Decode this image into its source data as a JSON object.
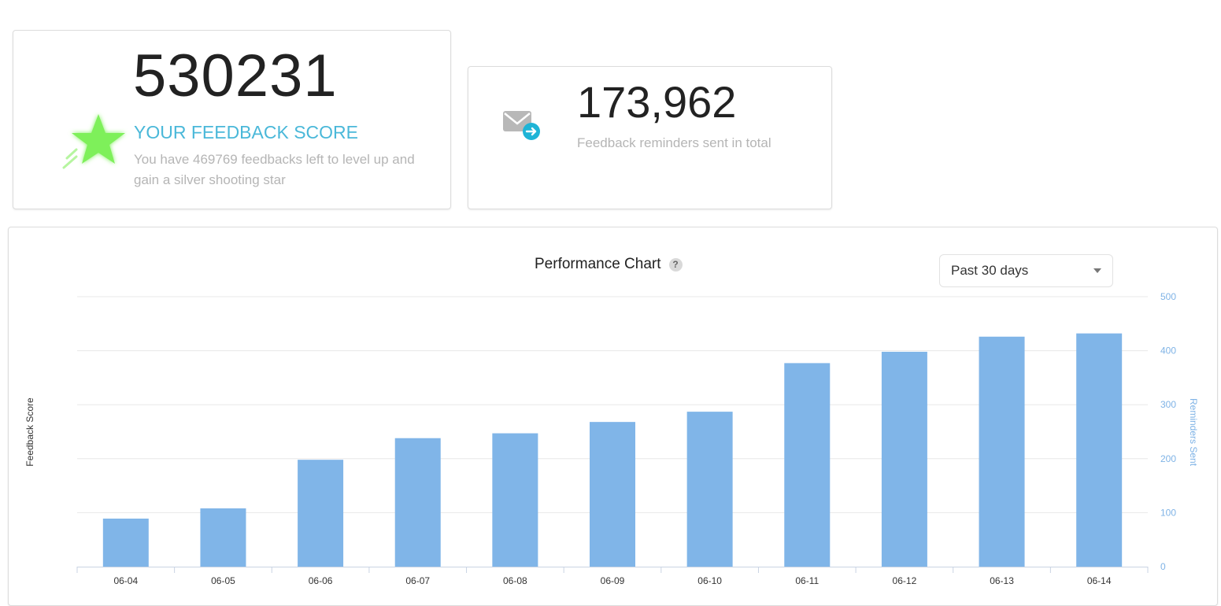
{
  "score_card": {
    "score": "530231",
    "label": "YOUR FEEDBACK SCORE",
    "description": "You have 469769 feedbacks left to level up and gain a silver shooting star",
    "icon": "shooting-star-icon",
    "icon_color": "#7ef05a"
  },
  "reminder_card": {
    "value": "173,962",
    "label": "Feedback reminders sent in total",
    "icon": "mail-send-icon",
    "icon_color": "#b8b8b8",
    "badge_color": "#1fb4d6"
  },
  "chart_panel": {
    "title": "Performance Chart",
    "help_icon": "?",
    "range_select": {
      "value": "Past 30 days"
    }
  },
  "chart_data": {
    "type": "bar",
    "categories": [
      "06-04",
      "06-05",
      "06-06",
      "06-07",
      "06-08",
      "06-09",
      "06-10",
      "06-11",
      "06-12",
      "06-13",
      "06-14"
    ],
    "series": [
      {
        "values": [
          89,
          108,
          198,
          238,
          247,
          268,
          287,
          377,
          398,
          426,
          432
        ],
        "color": "#80b5e8"
      }
    ],
    "ylabel_left": "Feedback Score",
    "ylabel_right": "Reminders Sent",
    "ylim": [
      0,
      500
    ],
    "yticks_right": [
      "0",
      "100",
      "200",
      "300",
      "400",
      "500"
    ],
    "grid": true,
    "colors": {
      "bar": "#80b5e8",
      "right_axis": "#7fb3e6",
      "grid": "#e8e8e8"
    }
  }
}
